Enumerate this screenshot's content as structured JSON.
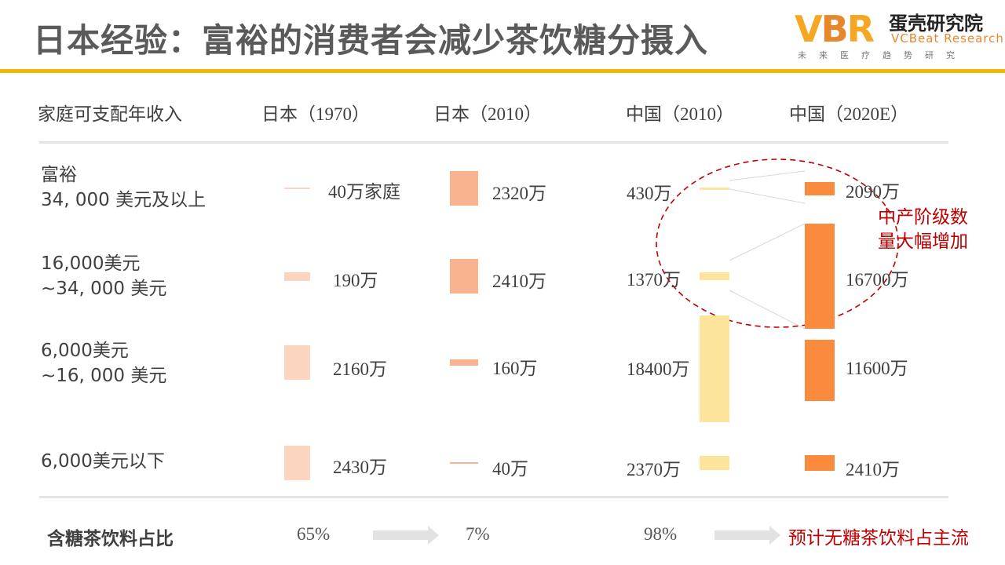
{
  "title": "日本经验：富裕的消费者会减少茶饮糖分摄入",
  "brand": {
    "mark_v": "V",
    "mark_b": "B",
    "mark_r": "R",
    "name_cn": "蛋壳研究院",
    "name_en": "VCBeat Research",
    "tagline": "未来医疗趋势研究",
    "accent_color": "#f2b800"
  },
  "table": {
    "row_header": "家庭可支配年收入",
    "column_prefixes": [
      "日本（",
      "日本（",
      "中国（",
      "中国（"
    ],
    "column_years": [
      "1970",
      "2010",
      "2010",
      "2020E"
    ],
    "column_suffix": "）",
    "rows": [
      {
        "line1": "富裕",
        "line2": "34, 000 美元及以上"
      },
      {
        "line1": "16,000美元",
        "line2": "~34, 000 美元"
      },
      {
        "line1": "6,000美元",
        "line2": "~16, 000 美元"
      },
      {
        "line1": "6,000美元以下",
        "line2": ""
      }
    ]
  },
  "chart_data": {
    "type": "bar",
    "unit": "万",
    "categories": [
      "34, 000 美元及以上",
      "~34, 000 美元",
      "~16, 000 美元",
      "6,000美元以下"
    ],
    "series": [
      {
        "name": "日本（1970）",
        "values": [
          40,
          190,
          2160,
          2430
        ],
        "labels": [
          "40万家庭",
          "190万",
          "2160万",
          "2430万"
        ],
        "color": "#fbd5c0"
      },
      {
        "name": "日本（2010）",
        "values": [
          2320,
          2410,
          160,
          40
        ],
        "labels": [
          "2320万",
          "2410万",
          "160万",
          "40万"
        ],
        "color": "#f9b48f"
      },
      {
        "name": "中国（2010）",
        "values": [
          430,
          1370,
          18400,
          2370
        ],
        "labels": [
          "430万",
          "1370万",
          "18400万",
          "2370万"
        ],
        "color": "#fce59a"
      },
      {
        "name": "中国（2020E）",
        "values": [
          2090,
          16700,
          11600,
          2410
        ],
        "labels": [
          "2090万",
          "16700万",
          "11600万",
          "2410万"
        ],
        "color": "#fb8b3c"
      }
    ],
    "annotation": "中产阶级数量大幅增加"
  },
  "annotation": {
    "line1": "中产阶级数",
    "line2": "量大幅增加",
    "color": "#c00000"
  },
  "footer": {
    "label": "含糖茶饮料占比",
    "jp1970": "65%",
    "jp2010": "7%",
    "cn2010": "98%",
    "note": "预计无糖茶饮料占主流"
  }
}
